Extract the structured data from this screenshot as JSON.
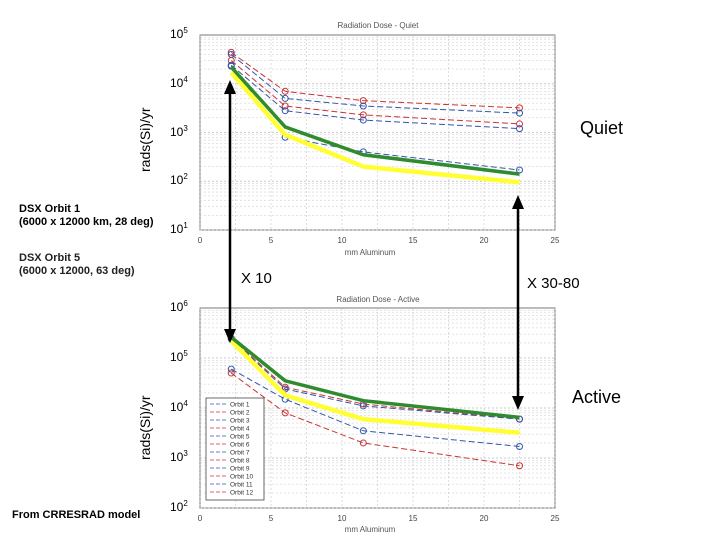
{
  "labels": {
    "ylabel": "rads(Si)/yr",
    "quiet": "Quiet",
    "active": "Active",
    "x10": "X 10",
    "x3080": "X 30-80",
    "orbit1_l1": "DSX Orbit 1",
    "orbit1_l2": "(6000 x 12000 km, 28 deg)",
    "orbit5_l1": "DSX Orbit 5",
    "orbit5_l2": "(6000 x 12000, 63 deg)",
    "source": "From CRRESRAD model"
  },
  "colors": {
    "green": "#2e8b2e",
    "yellow": "#ffff33",
    "red_dash": "#cc3333",
    "blue_dash": "#3355aa",
    "grid": "#bbbbbb",
    "arrow": "#000000"
  },
  "chart_data": [
    {
      "type": "line",
      "title": "Radiation Dose - Quiet",
      "xlabel": "mm Aluminum",
      "ylabel": "rads(Si)/yr",
      "xlim": [
        0,
        25
      ],
      "ylim_exp": [
        1,
        5
      ],
      "x_ticks": [
        "0",
        "5",
        "10",
        "15",
        "20",
        "25"
      ],
      "y_ticks": [
        {
          "base": "10",
          "exp": "5"
        },
        {
          "base": "10",
          "exp": "4"
        },
        {
          "base": "10",
          "exp": "3"
        },
        {
          "base": "10",
          "exp": "2"
        },
        {
          "base": "10",
          "exp": "1"
        }
      ],
      "series": [
        {
          "name": "DSX Orbit 1",
          "style": "green",
          "x": [
            2.2,
            6,
            11.5,
            22.5
          ],
          "values": [
            22000,
            1300,
            350,
            140
          ]
        },
        {
          "name": "DSX Orbit 5",
          "style": "yellow",
          "x": [
            2.2,
            6,
            11.5,
            22.5
          ],
          "values": [
            17000,
            900,
            200,
            95
          ]
        },
        {
          "name": "Orbit 1",
          "style": "red",
          "x": [
            2.2,
            6,
            11.5,
            22.5
          ],
          "values": [
            44000,
            7000,
            4500,
            3200
          ]
        },
        {
          "name": "Orbit 2",
          "style": "blue",
          "x": [
            2.2,
            6,
            11.5,
            22.5
          ],
          "values": [
            40000,
            5000,
            3500,
            2500
          ]
        },
        {
          "name": "Orbit 3",
          "style": "red",
          "x": [
            2.2,
            6,
            11.5,
            22.5
          ],
          "values": [
            30000,
            3500,
            2300,
            1500
          ]
        },
        {
          "name": "Orbit 4",
          "style": "blue",
          "x": [
            2.2,
            6,
            11.5,
            22.5
          ],
          "values": [
            24000,
            2800,
            1800,
            1200
          ]
        },
        {
          "name": "Orbit 5",
          "style": "blue",
          "x": [
            2.2,
            6,
            11.5,
            22.5
          ],
          "values": [
            23000,
            800,
            400,
            170
          ]
        }
      ]
    },
    {
      "type": "line",
      "title": "Radiation Dose - Active",
      "xlabel": "mm Aluminum",
      "ylabel": "rads(Si)/yr",
      "xlim": [
        0,
        25
      ],
      "ylim_exp": [
        2,
        6
      ],
      "x_ticks": [
        "0",
        "5",
        "10",
        "15",
        "20",
        "25"
      ],
      "y_ticks": [
        {
          "base": "10",
          "exp": "6"
        },
        {
          "base": "10",
          "exp": "5"
        },
        {
          "base": "10",
          "exp": "4"
        },
        {
          "base": "10",
          "exp": "3"
        },
        {
          "base": "10",
          "exp": "2"
        }
      ],
      "legend": [
        "Orbit 1",
        "Orbit 2",
        "Orbit 3",
        "Orbit 4",
        "Orbit 5",
        "Orbit 6",
        "Orbit 7",
        "Orbit 8",
        "Orbit 9",
        "Orbit 10",
        "Orbit 11",
        "Orbit 12"
      ],
      "series": [
        {
          "name": "DSX Orbit 1",
          "style": "green",
          "x": [
            2.2,
            6,
            11.5,
            22.5
          ],
          "values": [
            260000,
            35000,
            14000,
            6500
          ]
        },
        {
          "name": "DSX Orbit 5",
          "style": "yellow",
          "x": [
            2.2,
            6,
            11.5,
            22.5
          ],
          "values": [
            220000,
            18000,
            6000,
            3200
          ]
        },
        {
          "name": "Orbit 1",
          "style": "red",
          "x": [
            2.2,
            6,
            11.5,
            22.5
          ],
          "values": [
            250000,
            26000,
            12000,
            6000
          ]
        },
        {
          "name": "Orbit 2",
          "style": "blue",
          "x": [
            2.2,
            6,
            11.5,
            22.5
          ],
          "values": [
            240000,
            24000,
            11000,
            6000
          ]
        },
        {
          "name": "Orbit 3",
          "style": "blue",
          "x": [
            2.2,
            6,
            11.5,
            22.5
          ],
          "values": [
            60000,
            15000,
            3500,
            1700
          ]
        },
        {
          "name": "Orbit 4",
          "style": "red",
          "x": [
            2.2,
            6,
            11.5,
            22.5
          ],
          "values": [
            50000,
            8000,
            2000,
            700
          ]
        }
      ]
    }
  ]
}
